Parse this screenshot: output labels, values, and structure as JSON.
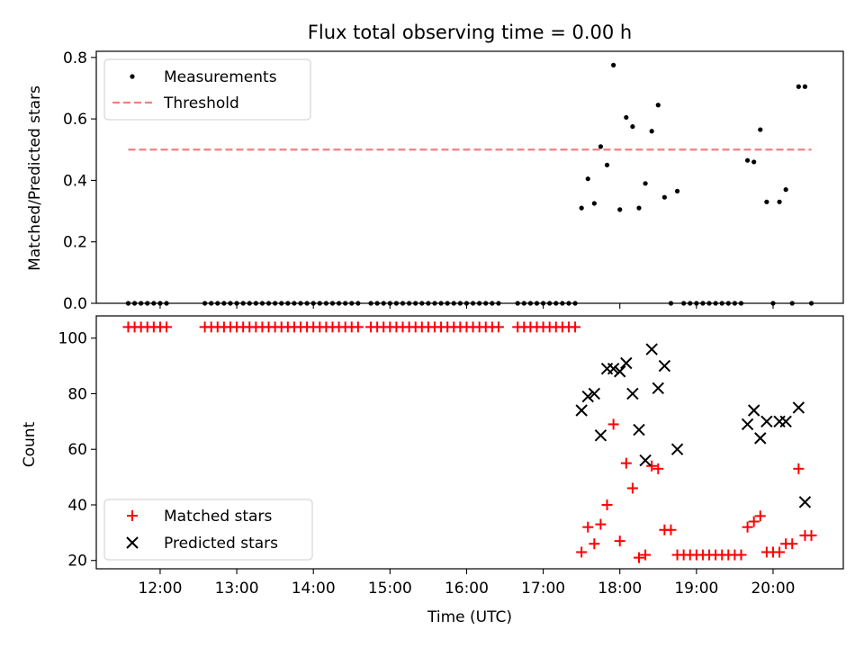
{
  "chart_data": [
    {
      "type": "scatter",
      "title": "Flux total observing time = 0.00 h",
      "xlabel": "",
      "ylabel": "Matched/Predicted stars",
      "xlim": [
        "11:10",
        "20:55"
      ],
      "ylim": [
        0,
        0.82
      ],
      "yticks": [
        0.0,
        0.2,
        0.4,
        0.6,
        0.8
      ],
      "ytick_labels": [
        "0.0",
        "0.2",
        "0.4",
        "0.6",
        "0.8"
      ],
      "legend": {
        "placement": "upper left",
        "entries": [
          {
            "label": "Measurements",
            "marker": "dot",
            "color": "#000000"
          },
          {
            "label": "Threshold",
            "marker": "dashed-line",
            "color": "#f08080"
          }
        ]
      },
      "series": [
        {
          "name": "Measurements",
          "color": "#000000",
          "x": [
            "11:35",
            "11:40",
            "11:45",
            "11:50",
            "11:55",
            "12:00",
            "12:05",
            "12:35",
            "12:40",
            "12:45",
            "12:50",
            "12:55",
            "13:00",
            "13:05",
            "13:10",
            "13:15",
            "13:20",
            "13:25",
            "13:30",
            "13:35",
            "13:40",
            "13:45",
            "13:50",
            "13:55",
            "14:00",
            "14:05",
            "14:10",
            "14:15",
            "14:20",
            "14:25",
            "14:30",
            "14:35",
            "14:45",
            "14:50",
            "14:55",
            "15:00",
            "15:05",
            "15:10",
            "15:15",
            "15:20",
            "15:25",
            "15:30",
            "15:35",
            "15:40",
            "15:45",
            "15:50",
            "15:55",
            "16:00",
            "16:05",
            "16:10",
            "16:15",
            "16:20",
            "16:25",
            "16:40",
            "16:45",
            "16:50",
            "16:55",
            "17:00",
            "17:05",
            "17:10",
            "17:15",
            "17:20",
            "17:25",
            "17:30",
            "17:35",
            "17:40",
            "17:45",
            "17:50",
            "17:55",
            "18:00",
            "18:05",
            "18:10",
            "18:15",
            "18:20",
            "18:25",
            "18:30",
            "18:35",
            "18:40",
            "18:45",
            "18:50",
            "18:55",
            "19:00",
            "19:05",
            "19:10",
            "19:15",
            "19:20",
            "19:25",
            "19:30",
            "19:35",
            "19:40",
            "19:45",
            "19:50",
            "19:55",
            "20:00",
            "20:05",
            "20:10",
            "20:15",
            "20:20",
            "20:25",
            "20:30"
          ],
          "y": [
            0,
            0,
            0,
            0,
            0,
            0,
            0,
            0,
            0,
            0,
            0,
            0,
            0,
            0,
            0,
            0,
            0,
            0,
            0,
            0,
            0,
            0,
            0,
            0,
            0,
            0,
            0,
            0,
            0,
            0,
            0,
            0,
            0,
            0,
            0,
            0,
            0,
            0,
            0,
            0,
            0,
            0,
            0,
            0,
            0,
            0,
            0,
            0,
            0,
            0,
            0,
            0,
            0,
            0,
            0,
            0,
            0,
            0,
            0,
            0,
            0,
            0,
            0,
            0.31,
            0.405,
            0.325,
            0.51,
            0.45,
            0.775,
            0.305,
            0.605,
            0.575,
            0.31,
            0.39,
            0.56,
            0.645,
            0.345,
            0,
            0.365,
            0,
            0,
            0,
            0,
            0,
            0,
            0,
            0,
            0,
            0,
            0.465,
            0.46,
            0.565,
            0.33,
            0,
            0.33,
            0.37,
            0,
            0.705,
            0.705,
            0
          ]
        },
        {
          "name": "Threshold",
          "color": "#f08080",
          "x": [
            "11:35",
            "20:30"
          ],
          "y": [
            0.5,
            0.5
          ]
        }
      ]
    },
    {
      "type": "scatter",
      "title": "",
      "xlabel": "Time (UTC)",
      "ylabel": "Count",
      "xlim": [
        "11:10",
        "20:55"
      ],
      "ylim": [
        17,
        108
      ],
      "xticks": [
        "12:00",
        "13:00",
        "14:00",
        "15:00",
        "16:00",
        "17:00",
        "18:00",
        "19:00",
        "20:00"
      ],
      "yticks": [
        20,
        40,
        60,
        80,
        100
      ],
      "ytick_labels": [
        "20",
        "40",
        "60",
        "80",
        "100"
      ],
      "legend": {
        "placement": "lower left",
        "entries": [
          {
            "label": "Matched stars",
            "marker": "plus",
            "color": "#ff0000"
          },
          {
            "label": "Predicted stars",
            "marker": "x",
            "color": "#000000"
          }
        ]
      },
      "series": [
        {
          "name": "Matched stars",
          "color": "#ff0000",
          "x": [
            "11:35",
            "11:40",
            "11:45",
            "11:50",
            "11:55",
            "12:00",
            "12:05",
            "12:35",
            "12:40",
            "12:45",
            "12:50",
            "12:55",
            "13:00",
            "13:05",
            "13:10",
            "13:15",
            "13:20",
            "13:25",
            "13:30",
            "13:35",
            "13:40",
            "13:45",
            "13:50",
            "13:55",
            "14:00",
            "14:05",
            "14:10",
            "14:15",
            "14:20",
            "14:25",
            "14:30",
            "14:35",
            "14:45",
            "14:50",
            "14:55",
            "15:00",
            "15:05",
            "15:10",
            "15:15",
            "15:20",
            "15:25",
            "15:30",
            "15:35",
            "15:40",
            "15:45",
            "15:50",
            "15:55",
            "16:00",
            "16:05",
            "16:10",
            "16:15",
            "16:20",
            "16:25",
            "16:40",
            "16:45",
            "16:50",
            "16:55",
            "17:00",
            "17:05",
            "17:10",
            "17:15",
            "17:20",
            "17:25",
            "17:30",
            "17:35",
            "17:40",
            "17:45",
            "17:50",
            "17:55",
            "18:00",
            "18:05",
            "18:10",
            "18:15",
            "18:20",
            "18:25",
            "18:30",
            "18:35",
            "18:40",
            "18:45",
            "18:50",
            "18:55",
            "19:00",
            "19:05",
            "19:10",
            "19:15",
            "19:20",
            "19:25",
            "19:30",
            "19:35",
            "19:40",
            "19:45",
            "19:50",
            "19:55",
            "20:00",
            "20:05",
            "20:10",
            "20:15",
            "20:20",
            "20:25",
            "20:30"
          ],
          "y": [
            104,
            104,
            104,
            104,
            104,
            104,
            104,
            104,
            104,
            104,
            104,
            104,
            104,
            104,
            104,
            104,
            104,
            104,
            104,
            104,
            104,
            104,
            104,
            104,
            104,
            104,
            104,
            104,
            104,
            104,
            104,
            104,
            104,
            104,
            104,
            104,
            104,
            104,
            104,
            104,
            104,
            104,
            104,
            104,
            104,
            104,
            104,
            104,
            104,
            104,
            104,
            104,
            104,
            104,
            104,
            104,
            104,
            104,
            104,
            104,
            104,
            104,
            104,
            23,
            32,
            26,
            33,
            40,
            69,
            27,
            55,
            46,
            21,
            22,
            54,
            53,
            31,
            31,
            22,
            22,
            22,
            22,
            22,
            22,
            22,
            22,
            22,
            22,
            22,
            32,
            34,
            36,
            23,
            23,
            23,
            26,
            26,
            53,
            29,
            29
          ]
        },
        {
          "name": "Predicted stars",
          "color": "#000000",
          "x": [
            "17:30",
            "17:35",
            "17:40",
            "17:45",
            "17:50",
            "17:55",
            "18:00",
            "18:05",
            "18:10",
            "18:15",
            "18:20",
            "18:25",
            "18:30",
            "18:35",
            "18:45",
            "19:40",
            "19:45",
            "19:50",
            "19:55",
            "20:05",
            "20:10",
            "20:20",
            "20:25"
          ],
          "y": [
            74,
            79,
            80,
            65,
            89,
            89,
            88,
            91,
            80,
            67,
            56,
            96,
            82,
            90,
            60,
            69,
            74,
            64,
            70,
            70,
            70,
            75,
            41
          ]
        }
      ]
    }
  ]
}
